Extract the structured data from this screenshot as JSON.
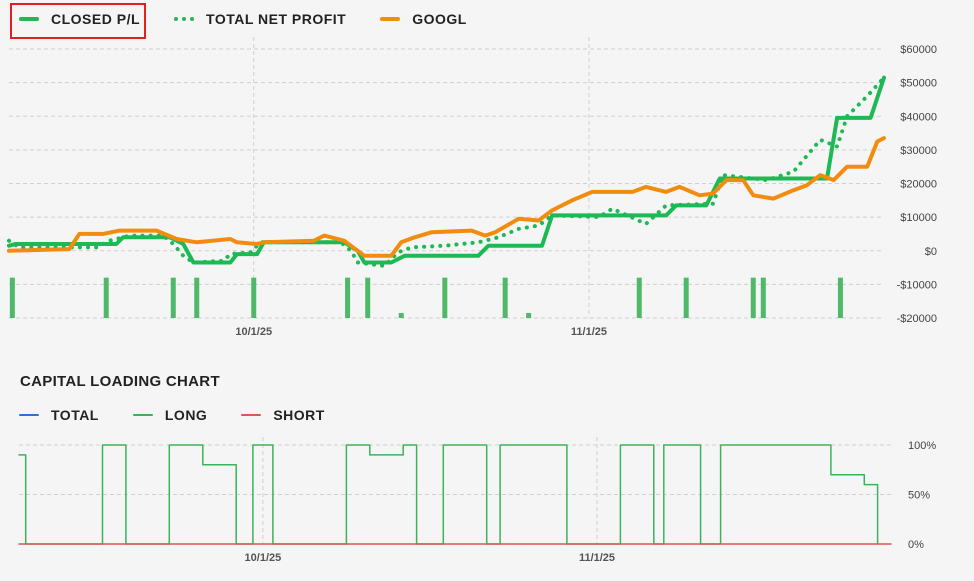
{
  "legend_top": [
    {
      "label": "CLOSED P/L",
      "color": "#1db954",
      "style": "solid"
    },
    {
      "label": "TOTAL NET PROFIT",
      "color": "#1db954",
      "style": "dotted"
    },
    {
      "label": "GOOGL",
      "color": "#f28c0f",
      "style": "solid"
    }
  ],
  "legend_bottom": [
    {
      "label": "TOTAL",
      "color": "#2f6fd6"
    },
    {
      "label": "LONG",
      "color": "#3cb35a"
    },
    {
      "label": "SHORT",
      "color": "#e05555"
    }
  ],
  "capital_title": "CAPITAL LOADING CHART",
  "chart_data": [
    {
      "type": "line",
      "title": "",
      "ylim": [
        -20000,
        60000
      ],
      "y_ticks": [
        60000,
        50000,
        40000,
        30000,
        20000,
        10000,
        0,
        -10000,
        -20000
      ],
      "y_tick_labels": [
        "$60000",
        "$50000",
        "$40000",
        "$30000",
        "$20000",
        "$10000",
        "$0",
        "-$10000",
        "-$20000"
      ],
      "x_tick_labels": [
        {
          "x": 73,
          "label": "10/1/25"
        },
        {
          "x": 173,
          "label": "11/1/25"
        }
      ],
      "x_range": [
        0,
        261
      ],
      "series": [
        {
          "name": "CLOSED P/L",
          "style": "solid",
          "color": "#1db954",
          "points": [
            [
              0,
              1500
            ],
            [
              2,
              2000
            ],
            [
              28,
              2000
            ],
            [
              32,
              2000
            ],
            [
              34,
              4000
            ],
            [
              48,
              4000
            ],
            [
              52,
              2000
            ],
            [
              55,
              -3500
            ],
            [
              66,
              -3500
            ],
            [
              68,
              -1000
            ],
            [
              74,
              -1000
            ],
            [
              76,
              2500
            ],
            [
              100,
              2500
            ],
            [
              104,
              0
            ],
            [
              106,
              -3500
            ],
            [
              114,
              -3500
            ],
            [
              118,
              -1500
            ],
            [
              140,
              -1500
            ],
            [
              143,
              1500
            ],
            [
              159,
              1500
            ],
            [
              162,
              10500
            ],
            [
              196,
              10500
            ],
            [
              199,
              13500
            ],
            [
              208,
              13500
            ],
            [
              212,
              21500
            ],
            [
              244,
              21500
            ],
            [
              247,
              39500
            ],
            [
              257,
              39500
            ],
            [
              261,
              51500
            ]
          ]
        },
        {
          "name": "TOTAL NET PROFIT",
          "style": "dotted",
          "color": "#1db954",
          "points": [
            [
              0,
              3000
            ],
            [
              3,
              1000
            ],
            [
              26,
              1000
            ],
            [
              30,
              3000
            ],
            [
              36,
              4500
            ],
            [
              46,
              4500
            ],
            [
              49,
              2000
            ],
            [
              52,
              -1500
            ],
            [
              55,
              -3500
            ],
            [
              64,
              -3000
            ],
            [
              66,
              -1000
            ],
            [
              72,
              -500
            ],
            [
              75,
              2500
            ],
            [
              99,
              2500
            ],
            [
              102,
              0
            ],
            [
              104,
              -3500
            ],
            [
              112,
              -4500
            ],
            [
              116,
              -500
            ],
            [
              120,
              1000
            ],
            [
              130,
              1500
            ],
            [
              140,
              2500
            ],
            [
              146,
              4000
            ],
            [
              152,
              6500
            ],
            [
              158,
              7500
            ],
            [
              162,
              10500
            ],
            [
              176,
              10000
            ],
            [
              180,
              12500
            ],
            [
              190,
              8000
            ],
            [
              196,
              13500
            ],
            [
              210,
              14000
            ],
            [
              213,
              22500
            ],
            [
              226,
              21000
            ],
            [
              234,
              23500
            ],
            [
              242,
              33000
            ],
            [
              247,
              31000
            ],
            [
              250,
              40000
            ],
            [
              256,
              46000
            ],
            [
              261,
              51500
            ]
          ]
        },
        {
          "name": "GOOGL",
          "style": "solid",
          "color": "#f28c0f",
          "points": [
            [
              0,
              0
            ],
            [
              18,
              500
            ],
            [
              21,
              5000
            ],
            [
              28,
              5000
            ],
            [
              33,
              6000
            ],
            [
              44,
              6000
            ],
            [
              50,
              3500
            ],
            [
              56,
              2500
            ],
            [
              66,
              3500
            ],
            [
              68,
              2500
            ],
            [
              74,
              2000
            ],
            [
              76,
              2500
            ],
            [
              91,
              3000
            ],
            [
              94,
              4500
            ],
            [
              100,
              3000
            ],
            [
              104,
              0
            ],
            [
              106,
              -1500
            ],
            [
              114,
              -1500
            ],
            [
              117,
              2500
            ],
            [
              121,
              4000
            ],
            [
              126,
              5500
            ],
            [
              138,
              6000
            ],
            [
              142,
              4500
            ],
            [
              145,
              5500
            ],
            [
              152,
              9500
            ],
            [
              158,
              9000
            ],
            [
              162,
              12000
            ],
            [
              168,
              15000
            ],
            [
              174,
              17500
            ],
            [
              186,
              17500
            ],
            [
              190,
              19000
            ],
            [
              196,
              17500
            ],
            [
              200,
              19000
            ],
            [
              206,
              16500
            ],
            [
              210,
              17000
            ],
            [
              214,
              21000
            ],
            [
              219,
              21000
            ],
            [
              222,
              16500
            ],
            [
              228,
              15500
            ],
            [
              234,
              18000
            ],
            [
              238,
              19500
            ],
            [
              242,
              22500
            ],
            [
              246,
              21000
            ],
            [
              250,
              25000
            ],
            [
              256,
              25000
            ],
            [
              259,
              32500
            ],
            [
              261,
              33500
            ]
          ]
        }
      ],
      "bars": {
        "name": "volume",
        "color": "#3cb35a",
        "base": -20000,
        "items": [
          [
            1,
            -8000
          ],
          [
            29,
            -8000
          ],
          [
            49,
            -8000
          ],
          [
            56,
            -8000
          ],
          [
            73,
            -8000
          ],
          [
            101,
            -8000
          ],
          [
            107,
            -8000
          ],
          [
            117,
            -18500
          ],
          [
            130,
            -8000
          ],
          [
            148,
            -8000
          ],
          [
            155,
            -18500
          ],
          [
            188,
            -8000
          ],
          [
            202,
            -8000
          ],
          [
            222,
            -8000
          ],
          [
            225,
            -8000
          ],
          [
            248,
            -8000
          ]
        ]
      }
    },
    {
      "type": "line",
      "title": "CAPITAL LOADING CHART",
      "ylim": [
        0,
        100
      ],
      "y_ticks": [
        100,
        50,
        0
      ],
      "y_tick_labels": [
        "100%",
        "50%",
        "0%"
      ],
      "x_tick_labels": [
        {
          "x": 73,
          "label": "10/1/25"
        },
        {
          "x": 173,
          "label": "11/1/25"
        }
      ],
      "x_range": [
        0,
        261
      ],
      "series": [
        {
          "name": "LONG",
          "color": "#3cb35a",
          "points": [
            [
              0,
              90
            ],
            [
              2,
              90
            ],
            [
              2,
              0
            ],
            [
              25,
              0
            ],
            [
              25,
              100
            ],
            [
              32,
              100
            ],
            [
              32,
              0
            ],
            [
              45,
              0
            ],
            [
              45,
              100
            ],
            [
              55,
              100
            ],
            [
              55,
              80
            ],
            [
              65,
              80
            ],
            [
              65,
              0
            ],
            [
              70,
              0
            ],
            [
              70,
              100
            ],
            [
              76,
              100
            ],
            [
              76,
              0
            ],
            [
              98,
              0
            ],
            [
              98,
              100
            ],
            [
              105,
              100
            ],
            [
              105,
              90
            ],
            [
              115,
              90
            ],
            [
              115,
              100
            ],
            [
              119,
              100
            ],
            [
              119,
              0
            ],
            [
              127,
              0
            ],
            [
              127,
              100
            ],
            [
              140,
              100
            ],
            [
              140,
              0
            ],
            [
              144,
              0
            ],
            [
              144,
              100
            ],
            [
              164,
              100
            ],
            [
              164,
              0
            ],
            [
              180,
              0
            ],
            [
              180,
              100
            ],
            [
              190,
              100
            ],
            [
              190,
              0
            ],
            [
              193,
              0
            ],
            [
              193,
              100
            ],
            [
              204,
              100
            ],
            [
              204,
              0
            ],
            [
              210,
              0
            ],
            [
              210,
              100
            ],
            [
              243,
              100
            ],
            [
              243,
              70
            ],
            [
              253,
              70
            ],
            [
              253,
              60
            ],
            [
              257,
              60
            ],
            [
              257,
              0
            ]
          ]
        },
        {
          "name": "SHORT",
          "color": "#e05555",
          "points": [
            [
              0,
              0
            ],
            [
              261,
              0
            ]
          ]
        }
      ]
    }
  ]
}
